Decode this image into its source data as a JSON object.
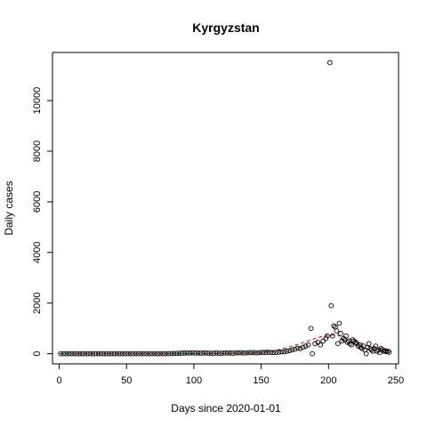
{
  "chart_data": {
    "type": "scatter",
    "title": "Kyrgyzstan",
    "xlabel": "Days since 2020-01-01",
    "ylabel": "Daily cases",
    "xlim": [
      -5,
      252
    ],
    "ylim": [
      -400,
      11900
    ],
    "xticks": [
      0,
      50,
      100,
      150,
      200,
      250
    ],
    "yticks": [
      0,
      2000,
      4000,
      6000,
      8000,
      10000
    ],
    "grid": false,
    "colors": {
      "points": "#000000",
      "trend": "#cc0000",
      "frame": "#000000"
    },
    "series": [
      {
        "type": "scatter",
        "points": [
          [
            1,
            0
          ],
          [
            3,
            0
          ],
          [
            5,
            0
          ],
          [
            7,
            0
          ],
          [
            9,
            0
          ],
          [
            11,
            0
          ],
          [
            13,
            0
          ],
          [
            15,
            0
          ],
          [
            17,
            0
          ],
          [
            19,
            0
          ],
          [
            21,
            0
          ],
          [
            23,
            0
          ],
          [
            25,
            0
          ],
          [
            27,
            0
          ],
          [
            29,
            0
          ],
          [
            31,
            0
          ],
          [
            33,
            0
          ],
          [
            35,
            0
          ],
          [
            37,
            0
          ],
          [
            39,
            0
          ],
          [
            41,
            0
          ],
          [
            43,
            0
          ],
          [
            45,
            0
          ],
          [
            47,
            0
          ],
          [
            49,
            0
          ],
          [
            51,
            0
          ],
          [
            53,
            0
          ],
          [
            55,
            0
          ],
          [
            57,
            0
          ],
          [
            59,
            0
          ],
          [
            61,
            0
          ],
          [
            63,
            0
          ],
          [
            65,
            0
          ],
          [
            67,
            0
          ],
          [
            69,
            0
          ],
          [
            71,
            0
          ],
          [
            73,
            0
          ],
          [
            75,
            0
          ],
          [
            77,
            0
          ],
          [
            79,
            0
          ],
          [
            81,
            3
          ],
          [
            83,
            5
          ],
          [
            85,
            8
          ],
          [
            87,
            10
          ],
          [
            89,
            15
          ],
          [
            91,
            20
          ],
          [
            93,
            25
          ],
          [
            95,
            28
          ],
          [
            97,
            30
          ],
          [
            99,
            35
          ],
          [
            101,
            30
          ],
          [
            103,
            25
          ],
          [
            105,
            20
          ],
          [
            107,
            25
          ],
          [
            109,
            30
          ],
          [
            111,
            20
          ],
          [
            113,
            15
          ],
          [
            115,
            20
          ],
          [
            117,
            25
          ],
          [
            119,
            15
          ],
          [
            121,
            20
          ],
          [
            123,
            25
          ],
          [
            125,
            30
          ],
          [
            127,
            25
          ],
          [
            129,
            20
          ],
          [
            131,
            30
          ],
          [
            133,
            35
          ],
          [
            135,
            40
          ],
          [
            137,
            30
          ],
          [
            139,
            35
          ],
          [
            141,
            40
          ],
          [
            143,
            45
          ],
          [
            145,
            40
          ],
          [
            147,
            35
          ],
          [
            149,
            45
          ],
          [
            151,
            50
          ],
          [
            153,
            55
          ],
          [
            155,
            60
          ],
          [
            157,
            50
          ],
          [
            159,
            45
          ],
          [
            161,
            55
          ],
          [
            163,
            60
          ],
          [
            165,
            70
          ],
          [
            167,
            80
          ],
          [
            169,
            100
          ],
          [
            171,
            120
          ],
          [
            173,
            150
          ],
          [
            175,
            180
          ],
          [
            177,
            220
          ],
          [
            179,
            200
          ],
          [
            181,
            250
          ],
          [
            183,
            300
          ],
          [
            185,
            350
          ],
          [
            187,
            1000
          ],
          [
            188,
            0
          ],
          [
            190,
            400
          ],
          [
            192,
            450
          ],
          [
            194,
            350
          ],
          [
            196,
            500
          ],
          [
            198,
            600
          ],
          [
            199,
            700
          ],
          [
            201,
            11500
          ],
          [
            202,
            1900
          ],
          [
            203,
            700
          ],
          [
            204,
            1100
          ],
          [
            205,
            1050
          ],
          [
            206,
            900
          ],
          [
            207,
            400
          ],
          [
            208,
            1200
          ],
          [
            209,
            800
          ],
          [
            210,
            500
          ],
          [
            211,
            600
          ],
          [
            212,
            550
          ],
          [
            213,
            700
          ],
          [
            214,
            450
          ],
          [
            215,
            500
          ],
          [
            216,
            400
          ],
          [
            217,
            350
          ],
          [
            218,
            550
          ],
          [
            219,
            500
          ],
          [
            220,
            450
          ],
          [
            221,
            400
          ],
          [
            222,
            300
          ],
          [
            223,
            350
          ],
          [
            224,
            250
          ],
          [
            225,
            200
          ],
          [
            226,
            300
          ],
          [
            227,
            150
          ],
          [
            228,
            0
          ],
          [
            229,
            250
          ],
          [
            230,
            400
          ],
          [
            231,
            200
          ],
          [
            232,
            150
          ],
          [
            233,
            100
          ],
          [
            234,
            200
          ],
          [
            235,
            300
          ],
          [
            236,
            100
          ],
          [
            237,
            150
          ],
          [
            238,
            50
          ],
          [
            239,
            200
          ],
          [
            240,
            150
          ],
          [
            241,
            100
          ],
          [
            242,
            120
          ],
          [
            243,
            80
          ],
          [
            244,
            100
          ],
          [
            245,
            60
          ]
        ]
      },
      {
        "type": "line",
        "style": "dashed",
        "points": [
          [
            0,
            0
          ],
          [
            80,
            0
          ],
          [
            120,
            8
          ],
          [
            140,
            25
          ],
          [
            150,
            50
          ],
          [
            160,
            120
          ],
          [
            170,
            250
          ],
          [
            180,
            420
          ],
          [
            190,
            600
          ],
          [
            198,
            720
          ],
          [
            205,
            750
          ],
          [
            212,
            650
          ],
          [
            220,
            500
          ],
          [
            230,
            300
          ],
          [
            240,
            150
          ],
          [
            245,
            100
          ]
        ]
      }
    ]
  }
}
